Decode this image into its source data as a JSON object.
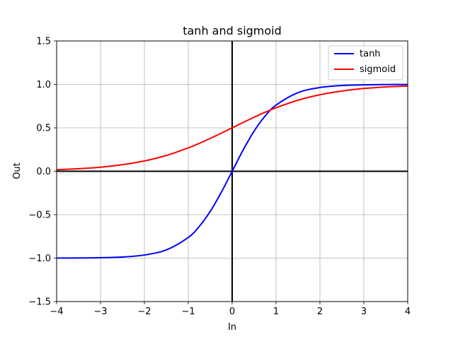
{
  "chart_data": {
    "type": "line",
    "title": "tanh and sigmoid",
    "xlabel": "In",
    "ylabel": "Out",
    "xlim": [
      -4,
      4
    ],
    "ylim": [
      -1.5,
      1.5
    ],
    "grid": true,
    "legend_position": "upper right",
    "x_ticks": [
      "−4",
      "−3",
      "−2",
      "−1",
      "0",
      "1",
      "2",
      "3",
      "4"
    ],
    "y_ticks": [
      "1.5",
      "1.0",
      "0.5",
      "0.0",
      "−0.5",
      "−1.0",
      "−1.5"
    ],
    "reference_lines": [
      "x = 0",
      "y = 0"
    ],
    "colors": {
      "tanh": "#0000ff",
      "sigmoid": "#ff0000",
      "reference": "#000000",
      "grid": "#b0b0b0"
    },
    "x": [
      -4,
      -3.5,
      -3,
      -2.5,
      -2,
      -1.5,
      -1,
      -0.75,
      -0.5,
      -0.25,
      0,
      0.25,
      0.5,
      0.75,
      1,
      1.5,
      2,
      2.5,
      3,
      3.5,
      4
    ],
    "series": [
      {
        "name": "tanh",
        "values": [
          -0.999,
          -0.998,
          -0.995,
          -0.987,
          -0.964,
          -0.905,
          -0.762,
          -0.635,
          -0.462,
          -0.245,
          0.0,
          0.245,
          0.462,
          0.635,
          0.762,
          0.905,
          0.964,
          0.987,
          0.995,
          0.998,
          0.999
        ]
      },
      {
        "name": "sigmoid",
        "values": [
          0.018,
          0.029,
          0.047,
          0.076,
          0.119,
          0.182,
          0.269,
          0.321,
          0.378,
          0.438,
          0.5,
          0.562,
          0.622,
          0.679,
          0.731,
          0.818,
          0.881,
          0.924,
          0.953,
          0.971,
          0.982
        ]
      }
    ]
  }
}
